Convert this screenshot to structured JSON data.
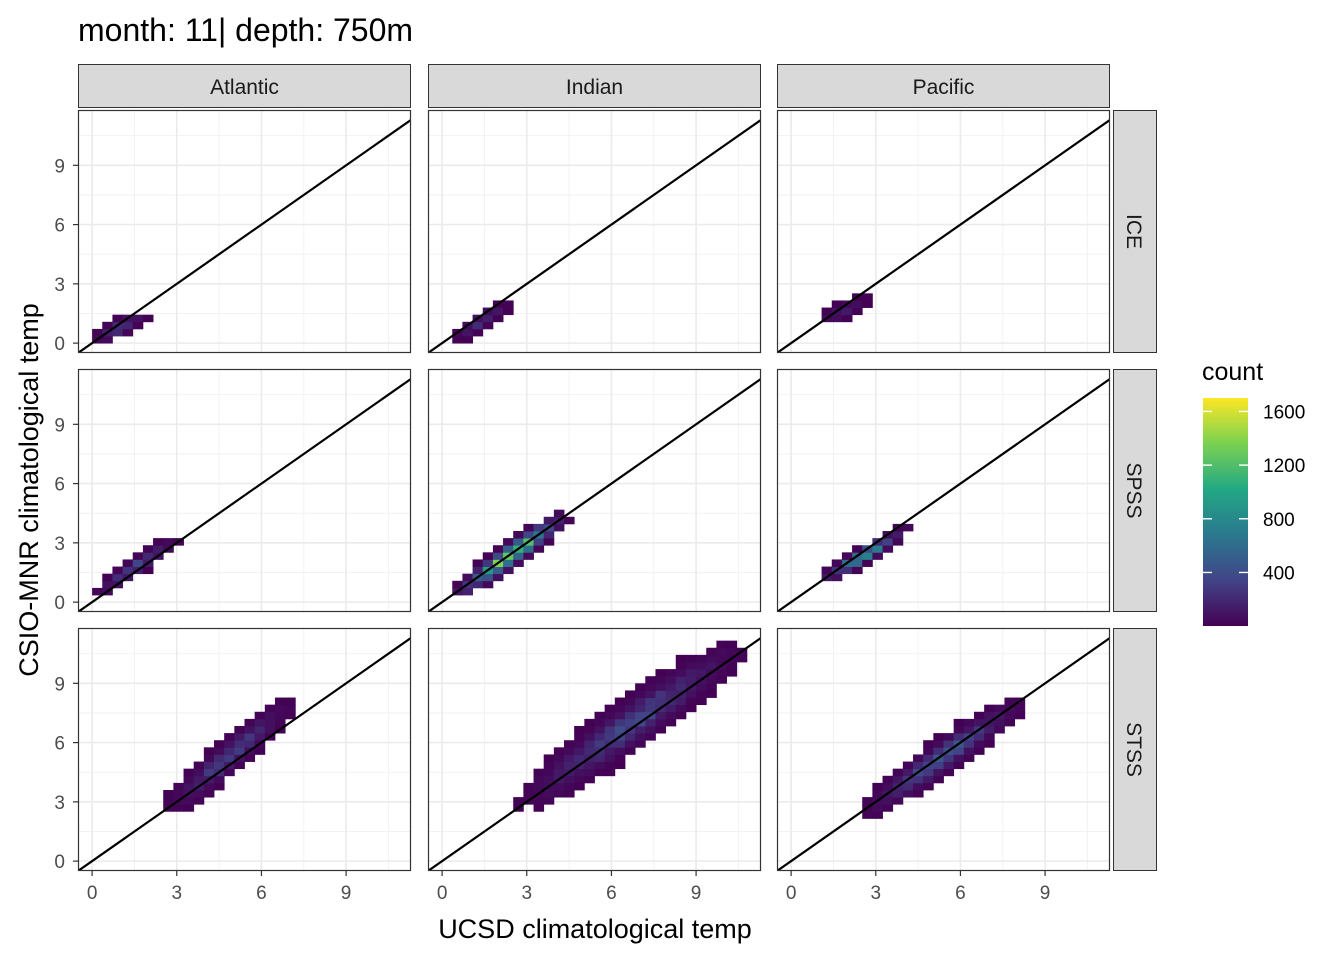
{
  "title": "month: 11| depth: 750m",
  "chart_data": {
    "type": "heatmap",
    "subtype": "binned 2d histogram (geom_bin2d) with identity line y = x",
    "title": "month: 11| depth: 750m",
    "xlabel": "UCSD climatological temp",
    "ylabel": "CSIO-MNR climatological temp",
    "xlim": [
      -0.5,
      11.3
    ],
    "ylim": [
      -0.5,
      11.8
    ],
    "x_ticks": [
      "0",
      "3",
      "6",
      "9"
    ],
    "y_ticks": [
      "0",
      "3",
      "6",
      "9"
    ],
    "x_tick_values": [
      0,
      3,
      6,
      9
    ],
    "y_tick_values": [
      0,
      3,
      6,
      9
    ],
    "bin_width": 0.36,
    "grid": true,
    "reference_line": "y = x",
    "column_facets": [
      "Atlantic",
      "Indian",
      "Pacific"
    ],
    "row_facets": [
      "ICE",
      "SPSS",
      "STSS"
    ],
    "legend": {
      "title": "count",
      "position": "right",
      "colormap": "viridis",
      "range": [
        1,
        1700
      ],
      "labels": [
        "1600",
        "1200",
        "800",
        "400"
      ],
      "label_values": [
        1600,
        1200,
        800,
        400
      ],
      "colors": [
        "#440154",
        "#414487",
        "#2a788e",
        "#22a884",
        "#7ad151",
        "#fde725"
      ]
    },
    "panels": [
      {
        "col": "Atlantic",
        "row": "ICE",
        "x_range": [
          0.0,
          2.0
        ],
        "y_range": [
          0.0,
          1.6
        ],
        "peak_count": 350
      },
      {
        "col": "Indian",
        "row": "ICE",
        "x_range": [
          0.4,
          2.4
        ],
        "y_range": [
          0.1,
          2.1
        ],
        "peak_count": 300
      },
      {
        "col": "Pacific",
        "row": "ICE",
        "x_range": [
          0.9,
          2.8
        ],
        "y_range": [
          0.9,
          2.4
        ],
        "peak_count": 180
      },
      {
        "col": "Atlantic",
        "row": "SPSS",
        "x_range": [
          0.0,
          3.1
        ],
        "y_range": [
          0.2,
          3.4
        ],
        "peak_count": 450
      },
      {
        "col": "Indian",
        "row": "SPSS",
        "x_range": [
          0.4,
          4.5
        ],
        "y_range": [
          0.2,
          4.6
        ],
        "peak_count": 1700
      },
      {
        "col": "Pacific",
        "row": "SPSS",
        "x_range": [
          0.9,
          4.2
        ],
        "y_range": [
          0.9,
          3.8
        ],
        "peak_count": 1100
      },
      {
        "col": "Atlantic",
        "row": "STSS",
        "x_range": [
          2.5,
          7.2
        ],
        "y_range": [
          2.3,
          8.3
        ],
        "peak_count": 400
      },
      {
        "col": "Indian",
        "row": "STSS",
        "x_range": [
          2.6,
          10.8
        ],
        "y_range": [
          2.6,
          11.3
        ],
        "peak_count": 450
      },
      {
        "col": "Pacific",
        "row": "STSS",
        "x_range": [
          2.5,
          8.3
        ],
        "y_range": [
          2.3,
          8.3
        ],
        "peak_count": 550
      }
    ]
  }
}
